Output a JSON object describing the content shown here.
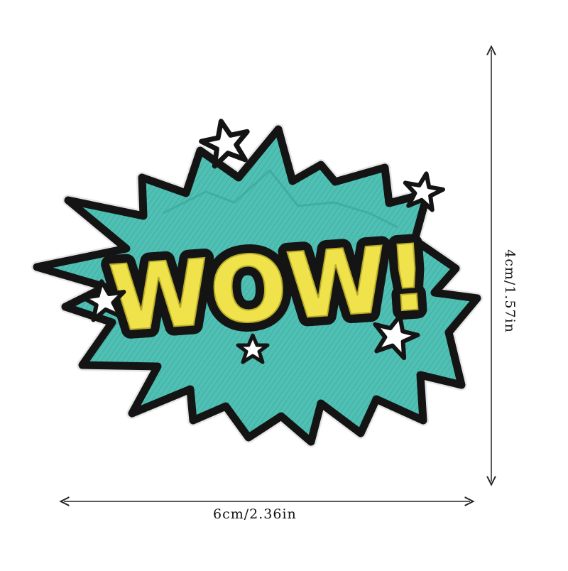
{
  "product": {
    "patch_text": "WOW!",
    "colors": {
      "burst_fill": "#4fc0b4",
      "burst_outline": "#141414",
      "letters_fill": "#f0e24a",
      "stars_fill": "#ffffff",
      "background": "#ffffff"
    }
  },
  "dimensions": {
    "width_label": "6cm/2.36in",
    "height_label": "4cm/1.57in"
  }
}
